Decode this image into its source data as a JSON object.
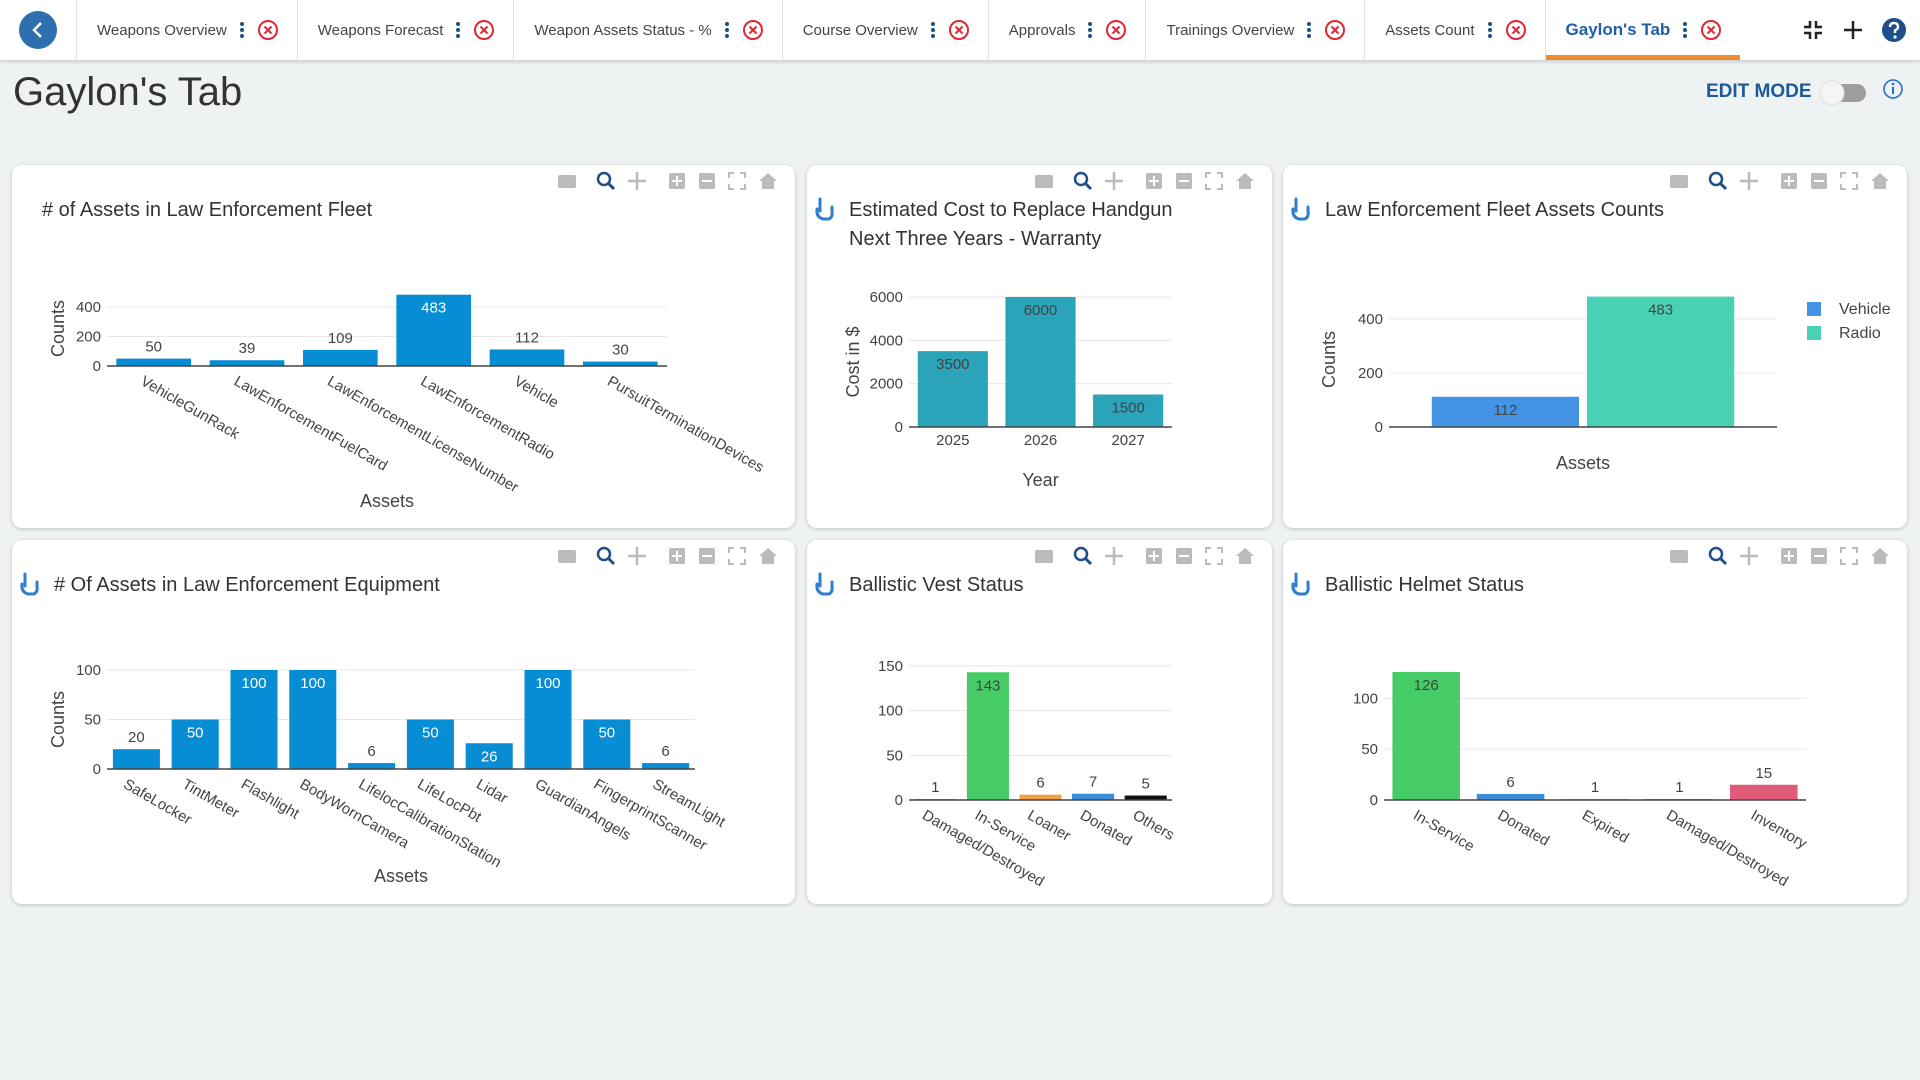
{
  "tabs": [
    "Weapons Overview",
    "Weapons Forecast",
    "Weapon Assets Status - %",
    "Course Overview",
    "Approvals",
    "Trainings Overview",
    "Assets Count",
    "Gaylon's Tab"
  ],
  "page_title": "Gaylon's Tab",
  "edit_mode_label": "EDIT MODE",
  "chart_data": [
    {
      "type": "bar",
      "title": "# of Assets in Law Enforcement Fleet",
      "categories": [
        "VehicleGunRack",
        "LawEnforcementFuelCard",
        "LawEnforcementLicenseNumber",
        "LawEnforcementRadio",
        "Vehicle",
        "PursuitTerminationDevices"
      ],
      "values": [
        50,
        39,
        109,
        483,
        112,
        30
      ],
      "color": "#078dd3",
      "x_label": "Assets",
      "y_label": "Counts",
      "ylim": [
        0,
        508
      ],
      "yticks": [
        0,
        200,
        400
      ],
      "grid": true
    },
    {
      "type": "bar",
      "title": "Estimated Cost to Replace Handgun Next Three Years - Warranty",
      "categories": [
        "2025",
        "2026",
        "2027"
      ],
      "values": [
        3500,
        6000,
        1500
      ],
      "color": "#2ba3b9",
      "x_label": "Year",
      "y_label": "Cost in $",
      "ylim": [
        0,
        6000
      ],
      "yticks": [
        0,
        2000,
        4000,
        6000
      ],
      "grid": true
    },
    {
      "type": "grouped_bar",
      "title": "Law Enforcement Fleet Assets Counts",
      "categories": [
        null
      ],
      "series": [
        {
          "name": "Vehicle",
          "color": "#4394e5",
          "values": [
            112
          ]
        },
        {
          "name": "Radio",
          "color": "#48d1b5",
          "values": [
            483
          ]
        }
      ],
      "x_label": "Assets",
      "y_label": "Counts",
      "ylim": [
        0,
        500
      ],
      "yticks": [
        0,
        200,
        400
      ],
      "grid": true,
      "legend": "top-right"
    },
    {
      "type": "bar",
      "title": "# Of Assets in Law Enforcement Equipment",
      "categories": [
        "SafeLocker",
        "TintMeter",
        "Flashlight",
        "BodyWornCamera",
        "LifelocCalibrationStation",
        "LifeLocPbt",
        "Lidar",
        "GuardianAngels",
        "FingerprintScanner",
        "StreamLight"
      ],
      "values": [
        20,
        50,
        100,
        100,
        6,
        50,
        26,
        100,
        50,
        6
      ],
      "color": "#078dd3",
      "x_label": "Assets",
      "y_label": "Counts",
      "ylim": [
        0,
        100
      ],
      "yticks": [
        0,
        50,
        100
      ],
      "grid": true
    },
    {
      "type": "bar",
      "title": "Ballistic Vest Status",
      "categories": [
        "Damaged/Destroyed",
        "In-Service",
        "Loaner",
        "Donated",
        "Others"
      ],
      "values": [
        1,
        143,
        6,
        7,
        5
      ],
      "colors": [
        "#2ba3b9",
        "#45cc66",
        "#f0a24a",
        "#3b8fd8",
        "#111111"
      ],
      "ylim": [
        0,
        150
      ],
      "yticks": [
        0,
        50,
        100,
        150
      ],
      "grid": true
    },
    {
      "type": "bar",
      "title": "Ballistic Helmet Status",
      "categories": [
        "In-Service",
        "Donated",
        "Expired",
        "Damaged/Destroyed",
        "Inventory"
      ],
      "values": [
        126,
        6,
        1,
        1,
        15
      ],
      "colors": [
        "#45cc66",
        "#3b8fd8",
        "#f0a24a",
        "#2ba3b9",
        "#e25a7a"
      ],
      "ylim": [
        0,
        126
      ],
      "yticks": [
        0,
        50,
        100
      ],
      "grid": true
    }
  ]
}
